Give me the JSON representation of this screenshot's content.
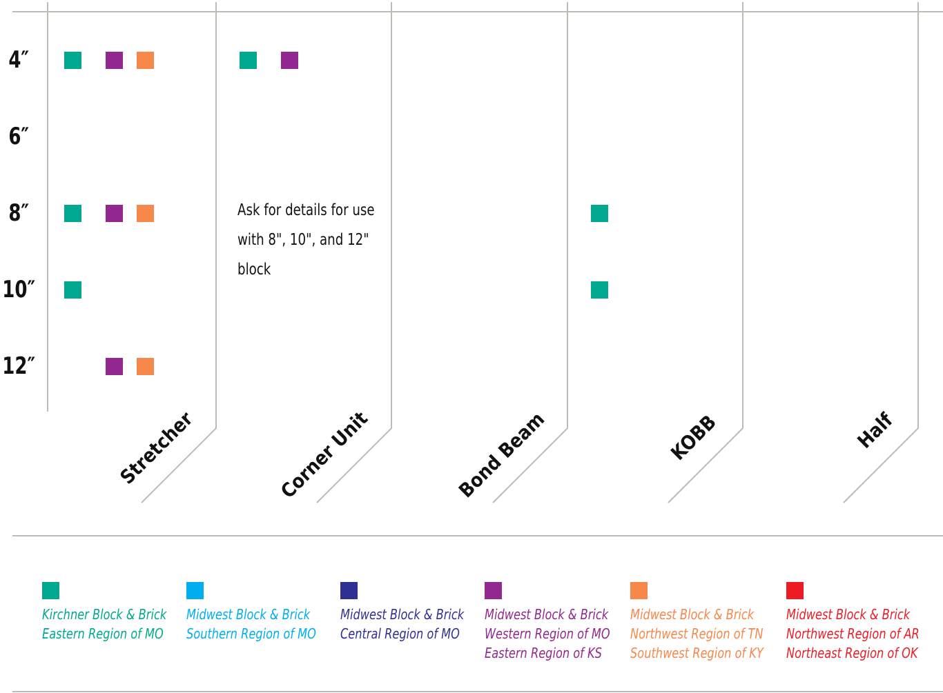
{
  "sizes": [
    "4″",
    "6″",
    "8″",
    "10″",
    "12″"
  ],
  "columns": [
    "Stretcher",
    "Corner Unit",
    "Bond Beam",
    "KOBB",
    "Half"
  ],
  "note": {
    "lines": [
      "Ask for details for use",
      "with 8\", 10\", and 12\"",
      "block"
    ]
  },
  "producers": [
    {
      "color": "#00a88f",
      "lines": [
        "Kirchner Block & Brick",
        "Eastern Region of MO"
      ]
    },
    {
      "color": "#00aeef",
      "lines": [
        "Midwest Block & Brick",
        "Southern Region of MO"
      ]
    },
    {
      "color": "#2e3192",
      "lines": [
        "Midwest Block & Brick",
        "Central Region of MO"
      ]
    },
    {
      "color": "#92278f",
      "lines": [
        "Midwest Block & Brick",
        "Western Region of MO",
        "Eastern Region of KS"
      ]
    },
    {
      "color": "#f7874a",
      "lines": [
        "Midwest Block & Brick",
        "Northwest Region of TN",
        "Southwest Region of KY"
      ]
    },
    {
      "color": "#ed1c24",
      "lines": [
        "Midwest Block & Brick",
        "Northwest Region of AR",
        "Northeast Region of OK"
      ]
    }
  ],
  "availability": [
    {
      "column": "Stretcher",
      "size": "4″",
      "producers": [
        0,
        3,
        4
      ]
    },
    {
      "column": "Stretcher",
      "size": "8″",
      "producers": [
        0,
        3,
        4
      ]
    },
    {
      "column": "Stretcher",
      "size": "10″",
      "producers": [
        0
      ]
    },
    {
      "column": "Stretcher",
      "size": "12″",
      "producers": [
        3,
        4
      ]
    },
    {
      "column": "Corner Unit",
      "size": "4″",
      "producers": [
        0,
        3
      ]
    },
    {
      "column": "KOBB",
      "size": "8″",
      "producers": [
        0
      ]
    },
    {
      "column": "KOBB",
      "size": "10″",
      "producers": [
        0
      ]
    }
  ]
}
